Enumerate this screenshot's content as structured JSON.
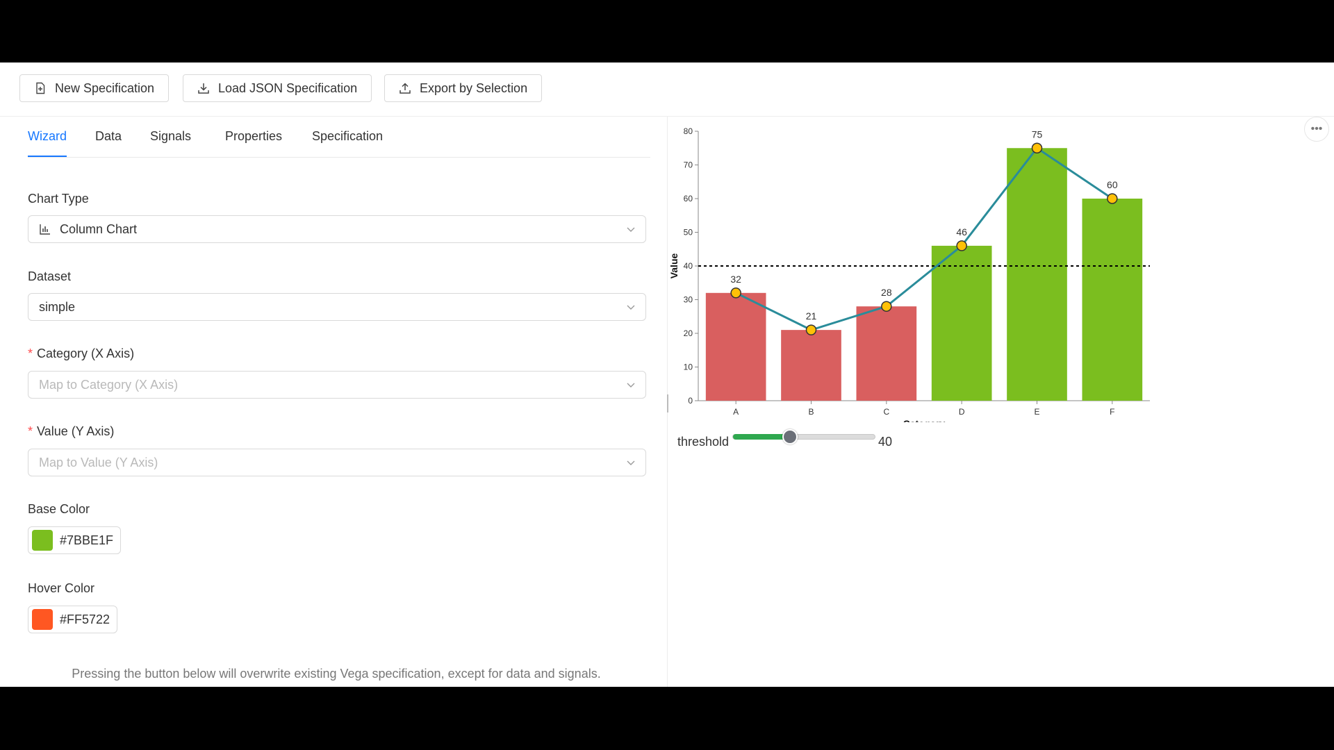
{
  "toolbar": {
    "new_spec": "New Specification",
    "load_json": "Load JSON Specification",
    "export": "Export by Selection"
  },
  "tabs": [
    "Wizard",
    "Data",
    "Signals",
    "Properties",
    "Specification"
  ],
  "active_tab": "Wizard",
  "form": {
    "chart_type": {
      "label": "Chart Type",
      "value": "Column Chart",
      "icon": "bar-chart-icon"
    },
    "dataset": {
      "label": "Dataset",
      "value": "simple"
    },
    "category": {
      "label": "Category (X Axis)",
      "placeholder": "Map to Category (X Axis)",
      "required_mark": "*"
    },
    "value": {
      "label": "Value (Y Axis)",
      "placeholder": "Map to Value (Y Axis)",
      "required_mark": "*"
    },
    "base_color": {
      "label": "Base Color",
      "value": "#7BBE1F",
      "color": "#7BBE1F"
    },
    "hover_color": {
      "label": "Hover Color",
      "value": "#FF5722",
      "color": "#FF5722"
    },
    "note": "Pressing the button below will overwrite existing Vega specification, except for data and signals."
  },
  "threshold": {
    "label": "threshold",
    "value": "40",
    "min": 0,
    "max": 100,
    "level": 40
  },
  "chart_data": {
    "type": "bar",
    "categories": [
      "A",
      "B",
      "C",
      "D",
      "E",
      "F"
    ],
    "values": [
      32,
      21,
      28,
      46,
      75,
      60
    ],
    "xlabel": "Category",
    "ylabel": "Value",
    "ylim": [
      0,
      80
    ],
    "yticks": [
      0,
      10,
      20,
      30,
      40,
      50,
      60,
      70,
      80
    ],
    "threshold": 40,
    "below_color": "#D95F5F",
    "above_color": "#7BBE1F",
    "line_color": "#2A8C9A",
    "point_color": "#FFC107",
    "overlay": "line with points on bar tops",
    "grid": false
  }
}
